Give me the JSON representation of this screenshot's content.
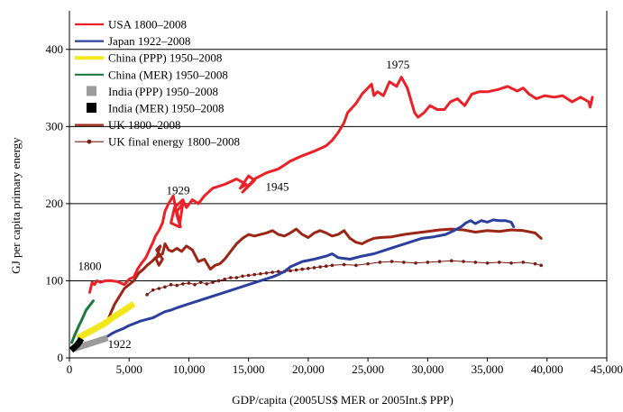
{
  "chart_data": {
    "type": "line",
    "xlabel": "GDP/capita (2005US$ MER or 2005Int.$ PPP)",
    "ylabel": "GJ per capita primary energy",
    "xlim": [
      0,
      45000
    ],
    "ylim": [
      0,
      450
    ],
    "xticks": [
      "0",
      "5,000",
      "10,000",
      "15,000",
      "20,000",
      "25,000",
      "30,000",
      "35,000",
      "40,000",
      "45,000"
    ],
    "yticks": [
      "0",
      "100",
      "200",
      "300",
      "400"
    ],
    "grid": "horizontal lines at 100, 200, 300, 400",
    "legend_position": "top-left",
    "series": [
      {
        "name": "USA 1800–2008",
        "color": "#ec2027",
        "kind": "line",
        "points": [
          [
            1700,
            85
          ],
          [
            1900,
            98
          ],
          [
            2100,
            95
          ],
          [
            2300,
            100
          ],
          [
            2600,
            98
          ],
          [
            3000,
            100
          ],
          [
            3500,
            100
          ],
          [
            4000,
            99
          ],
          [
            4600,
            95
          ],
          [
            5000,
            102
          ],
          [
            5400,
            105
          ],
          [
            5700,
            115
          ],
          [
            6000,
            122
          ],
          [
            6400,
            130
          ],
          [
            6700,
            140
          ],
          [
            7000,
            150
          ],
          [
            7200,
            158
          ],
          [
            7500,
            165
          ],
          [
            7800,
            175
          ],
          [
            8000,
            190
          ],
          [
            8300,
            200
          ],
          [
            8700,
            210
          ],
          [
            9000,
            185
          ],
          [
            9300,
            170
          ],
          [
            9000,
            190
          ],
          [
            9500,
            200
          ],
          [
            9200,
            170
          ],
          [
            8500,
            175
          ],
          [
            8800,
            195
          ],
          [
            9500,
            205
          ],
          [
            9800,
            195
          ],
          [
            10300,
            205
          ],
          [
            10800,
            200
          ],
          [
            11300,
            210
          ],
          [
            12000,
            220
          ],
          [
            13000,
            225
          ],
          [
            14000,
            232
          ],
          [
            14800,
            225
          ],
          [
            14300,
            220
          ],
          [
            15000,
            236
          ],
          [
            15500,
            230
          ],
          [
            14500,
            215
          ],
          [
            15500,
            232
          ],
          [
            16500,
            240
          ],
          [
            17500,
            245
          ],
          [
            18000,
            250
          ],
          [
            18500,
            255
          ],
          [
            19500,
            262
          ],
          [
            20500,
            268
          ],
          [
            21500,
            275
          ],
          [
            22000,
            282
          ],
          [
            22500,
            292
          ],
          [
            23000,
            305
          ],
          [
            23300,
            318
          ],
          [
            24000,
            330
          ],
          [
            24500,
            342
          ],
          [
            25000,
            350
          ],
          [
            25300,
            355
          ],
          [
            25500,
            340
          ],
          [
            25800,
            345
          ],
          [
            26300,
            340
          ],
          [
            26800,
            358
          ],
          [
            27400,
            352
          ],
          [
            27800,
            364
          ],
          [
            28300,
            350
          ],
          [
            28600,
            334
          ],
          [
            28900,
            318
          ],
          [
            29200,
            312
          ],
          [
            29700,
            318
          ],
          [
            30200,
            327
          ],
          [
            30800,
            322
          ],
          [
            31400,
            322
          ],
          [
            31900,
            332
          ],
          [
            32500,
            336
          ],
          [
            33100,
            327
          ],
          [
            33700,
            342
          ],
          [
            34300,
            345
          ],
          [
            35000,
            345
          ],
          [
            35900,
            348
          ],
          [
            36700,
            352
          ],
          [
            37500,
            346
          ],
          [
            38000,
            350
          ],
          [
            38500,
            342
          ],
          [
            39100,
            336
          ],
          [
            39800,
            340
          ],
          [
            40600,
            338
          ],
          [
            41300,
            340
          ],
          [
            42100,
            332
          ],
          [
            42800,
            338
          ],
          [
            43500,
            332
          ],
          [
            43600,
            325
          ],
          [
            43800,
            338
          ]
        ]
      },
      {
        "name": "Japan 1922–2008",
        "color": "#2b3f9e",
        "kind": "line",
        "points": [
          [
            3200,
            28
          ],
          [
            3600,
            32
          ],
          [
            4000,
            35
          ],
          [
            4500,
            38
          ],
          [
            5000,
            42
          ],
          [
            5500,
            45
          ],
          [
            6000,
            48
          ],
          [
            6500,
            50
          ],
          [
            7000,
            52
          ],
          [
            7500,
            56
          ],
          [
            8000,
            60
          ],
          [
            8500,
            62
          ],
          [
            9000,
            65
          ],
          [
            10000,
            70
          ],
          [
            11000,
            75
          ],
          [
            12000,
            80
          ],
          [
            13000,
            85
          ],
          [
            14000,
            90
          ],
          [
            15000,
            95
          ],
          [
            16000,
            100
          ],
          [
            17000,
            105
          ],
          [
            17500,
            108
          ],
          [
            18000,
            112
          ],
          [
            18500,
            118
          ],
          [
            19500,
            125
          ],
          [
            20500,
            128
          ],
          [
            21500,
            132
          ],
          [
            22000,
            135
          ],
          [
            22500,
            130
          ],
          [
            23500,
            128
          ],
          [
            24500,
            132
          ],
          [
            25500,
            135
          ],
          [
            26500,
            140
          ],
          [
            27500,
            145
          ],
          [
            28500,
            150
          ],
          [
            29500,
            155
          ],
          [
            30500,
            157
          ],
          [
            31500,
            160
          ],
          [
            32200,
            165
          ],
          [
            32800,
            170
          ],
          [
            33200,
            175
          ],
          [
            33600,
            178
          ],
          [
            34000,
            174
          ],
          [
            34500,
            178
          ],
          [
            35000,
            176
          ],
          [
            35500,
            179
          ],
          [
            36000,
            178
          ],
          [
            36500,
            178
          ],
          [
            37000,
            176
          ],
          [
            37200,
            170
          ]
        ]
      },
      {
        "name": "China (PPP) 1950–2008",
        "color": "#f2e71c",
        "kind": "band",
        "points": [
          [
            700,
            25
          ],
          [
            1200,
            30
          ],
          [
            1800,
            35
          ],
          [
            2400,
            40
          ],
          [
            3000,
            45
          ],
          [
            3600,
            52
          ],
          [
            4200,
            58
          ],
          [
            4800,
            64
          ],
          [
            5400,
            70
          ]
        ]
      },
      {
        "name": "China (MER) 1950–2008",
        "color": "#1a7a3e",
        "kind": "line",
        "points": [
          [
            200,
            20
          ],
          [
            400,
            28
          ],
          [
            600,
            35
          ],
          [
            800,
            42
          ],
          [
            1000,
            48
          ],
          [
            1200,
            55
          ],
          [
            1400,
            62
          ],
          [
            1700,
            68
          ],
          [
            2000,
            74
          ]
        ]
      },
      {
        "name": "India (PPP) 1950–2008",
        "color": "#9b9b9b",
        "kind": "band",
        "points": [
          [
            400,
            12
          ],
          [
            800,
            14
          ],
          [
            1200,
            16
          ],
          [
            1600,
            18
          ],
          [
            2000,
            20
          ],
          [
            2400,
            22
          ],
          [
            2800,
            24
          ],
          [
            3200,
            26
          ]
        ]
      },
      {
        "name": "India (MER) 1950–2008",
        "color": "#000000",
        "kind": "band",
        "points": [
          [
            150,
            10
          ],
          [
            300,
            12
          ],
          [
            450,
            14
          ],
          [
            600,
            16
          ],
          [
            800,
            20
          ],
          [
            1000,
            25
          ]
        ]
      },
      {
        "name": "UK 1800–2008",
        "color": "#9c2515",
        "kind": "line",
        "points": [
          [
            3300,
            52
          ],
          [
            3500,
            60
          ],
          [
            3800,
            70
          ],
          [
            4200,
            80
          ],
          [
            4600,
            90
          ],
          [
            5000,
            95
          ],
          [
            5400,
            100
          ],
          [
            5800,
            110
          ],
          [
            6200,
            115
          ],
          [
            6500,
            120
          ],
          [
            6900,
            125
          ],
          [
            7200,
            130
          ],
          [
            7500,
            120
          ],
          [
            7800,
            128
          ],
          [
            7300,
            140
          ],
          [
            7600,
            145
          ],
          [
            7300,
            130
          ],
          [
            7800,
            135
          ],
          [
            8000,
            148
          ],
          [
            8300,
            140
          ],
          [
            8600,
            138
          ],
          [
            9000,
            142
          ],
          [
            9400,
            138
          ],
          [
            9800,
            145
          ],
          [
            10300,
            140
          ],
          [
            10800,
            125
          ],
          [
            11300,
            128
          ],
          [
            11800,
            115
          ],
          [
            12200,
            120
          ],
          [
            12600,
            122
          ],
          [
            13000,
            128
          ],
          [
            13500,
            138
          ],
          [
            14000,
            148
          ],
          [
            14500,
            155
          ],
          [
            15000,
            160
          ],
          [
            15500,
            158
          ],
          [
            16000,
            160
          ],
          [
            16500,
            162
          ],
          [
            17000,
            165
          ],
          [
            17500,
            160
          ],
          [
            18000,
            158
          ],
          [
            18500,
            162
          ],
          [
            19000,
            167
          ],
          [
            19500,
            160
          ],
          [
            20000,
            156
          ],
          [
            20500,
            162
          ],
          [
            21000,
            165
          ],
          [
            21500,
            162
          ],
          [
            22000,
            158
          ],
          [
            22500,
            160
          ],
          [
            23000,
            165
          ],
          [
            23500,
            155
          ],
          [
            24000,
            150
          ],
          [
            24500,
            148
          ],
          [
            25000,
            152
          ],
          [
            25500,
            155
          ],
          [
            26000,
            156
          ],
          [
            27000,
            157
          ],
          [
            28000,
            160
          ],
          [
            29000,
            162
          ],
          [
            30000,
            164
          ],
          [
            31000,
            166
          ],
          [
            32000,
            167
          ],
          [
            33000,
            166
          ],
          [
            34000,
            163
          ],
          [
            35000,
            165
          ],
          [
            36000,
            164
          ],
          [
            37000,
            166
          ],
          [
            38000,
            165
          ],
          [
            39000,
            162
          ],
          [
            39500,
            155
          ]
        ]
      },
      {
        "name": "UK final energy 1800–2008",
        "color": "#7a1a12",
        "kind": "dotted",
        "points": [
          [
            6500,
            82
          ],
          [
            7000,
            88
          ],
          [
            7500,
            90
          ],
          [
            8000,
            92
          ],
          [
            8500,
            95
          ],
          [
            9000,
            94
          ],
          [
            9500,
            96
          ],
          [
            10000,
            97
          ],
          [
            10500,
            95
          ],
          [
            11000,
            98
          ],
          [
            11500,
            96
          ],
          [
            12000,
            98
          ],
          [
            12500,
            100
          ],
          [
            13000,
            102
          ],
          [
            13500,
            104
          ],
          [
            14000,
            104
          ],
          [
            14500,
            106
          ],
          [
            15000,
            107
          ],
          [
            15500,
            108
          ],
          [
            16000,
            109
          ],
          [
            16500,
            110
          ],
          [
            17000,
            111
          ],
          [
            17500,
            112
          ],
          [
            18000,
            112
          ],
          [
            18500,
            113
          ],
          [
            19000,
            114
          ],
          [
            19500,
            115
          ],
          [
            20000,
            116
          ],
          [
            20500,
            117
          ],
          [
            21000,
            118
          ],
          [
            21500,
            119
          ],
          [
            22000,
            120
          ],
          [
            23000,
            121
          ],
          [
            24000,
            120
          ],
          [
            25000,
            122
          ],
          [
            26000,
            124
          ],
          [
            27000,
            125
          ],
          [
            28000,
            124
          ],
          [
            29000,
            123
          ],
          [
            30000,
            124
          ],
          [
            31000,
            125
          ],
          [
            32000,
            126
          ],
          [
            33000,
            125
          ],
          [
            34000,
            124
          ],
          [
            35000,
            123
          ],
          [
            36000,
            124
          ],
          [
            37000,
            123
          ],
          [
            38000,
            124
          ],
          [
            39000,
            122
          ],
          [
            39500,
            120
          ]
        ]
      }
    ],
    "annotations": [
      {
        "text": "1975",
        "x": 27500,
        "y": 375
      },
      {
        "text": "1929",
        "x": 9100,
        "y": 212
      },
      {
        "text": "1945",
        "x": 17400,
        "y": 217
      },
      {
        "text": "1800",
        "x": 1700,
        "y": 114
      },
      {
        "text": "1922",
        "x": 4200,
        "y": 13
      }
    ]
  }
}
